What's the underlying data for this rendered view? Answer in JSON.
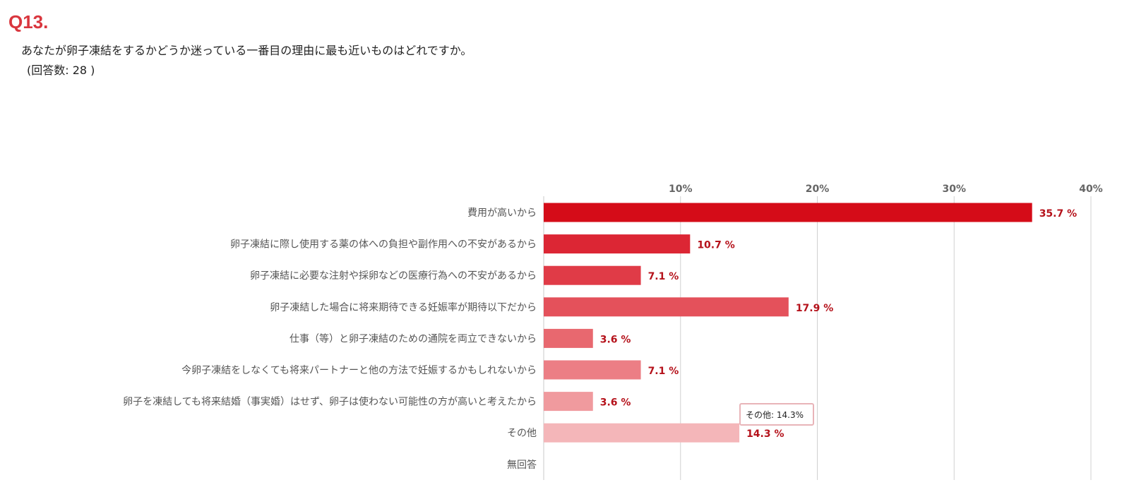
{
  "question": {
    "number": "Q13.",
    "text": "あなたが卵子凍結をするかどうか迷っている一番目の理由に最も近いものはどれですか。",
    "count": "(回答数: 28 )"
  },
  "colors": {
    "question_number": "#d9363e",
    "bars": [
      "#d50c18",
      "#dc2634",
      "#e03b47",
      "#e4515b",
      "#e8686f",
      "#ec7e85",
      "#f09a9e",
      "#f4b6b9",
      "#f7c8ca"
    ],
    "value_label": "#b5121b",
    "grid": "#d0d0d0"
  },
  "tooltip": {
    "text": "その他: 14.3%"
  },
  "chart_data": {
    "type": "bar",
    "orientation": "horizontal",
    "categories": [
      "費用が高いから",
      "卵子凍結に際し使用する薬の体への負担や副作用への不安があるから",
      "卵子凍結に必要な注射や採卵などの医療行為への不安があるから",
      "卵子凍結した場合に将来期待できる妊娠率が期待以下だから",
      "仕事（等）と卵子凍結のための通院を両立できないから",
      "今卵子凍結をしなくても将来パートナーと他の方法で妊娠するかもしれないから",
      "卵子を凍結しても将来結婚（事実婚）はせず、卵子は使わない可能性の方が高いと考えたから",
      "その他",
      "無回答"
    ],
    "values": [
      35.7,
      10.7,
      7.1,
      17.9,
      3.6,
      7.1,
      3.6,
      14.3,
      0
    ],
    "value_labels": [
      "35.7 %",
      "10.7 %",
      "7.1 %",
      "17.9 %",
      "3.6 %",
      "7.1 %",
      "3.6 %",
      "14.3 %",
      ""
    ],
    "x_ticks": [
      10,
      20,
      30,
      40
    ],
    "x_tick_labels": [
      "10%",
      "20%",
      "30%",
      "40%"
    ],
    "xlim": [
      0,
      40
    ],
    "grid": true,
    "title": "",
    "xlabel": "",
    "ylabel": ""
  }
}
